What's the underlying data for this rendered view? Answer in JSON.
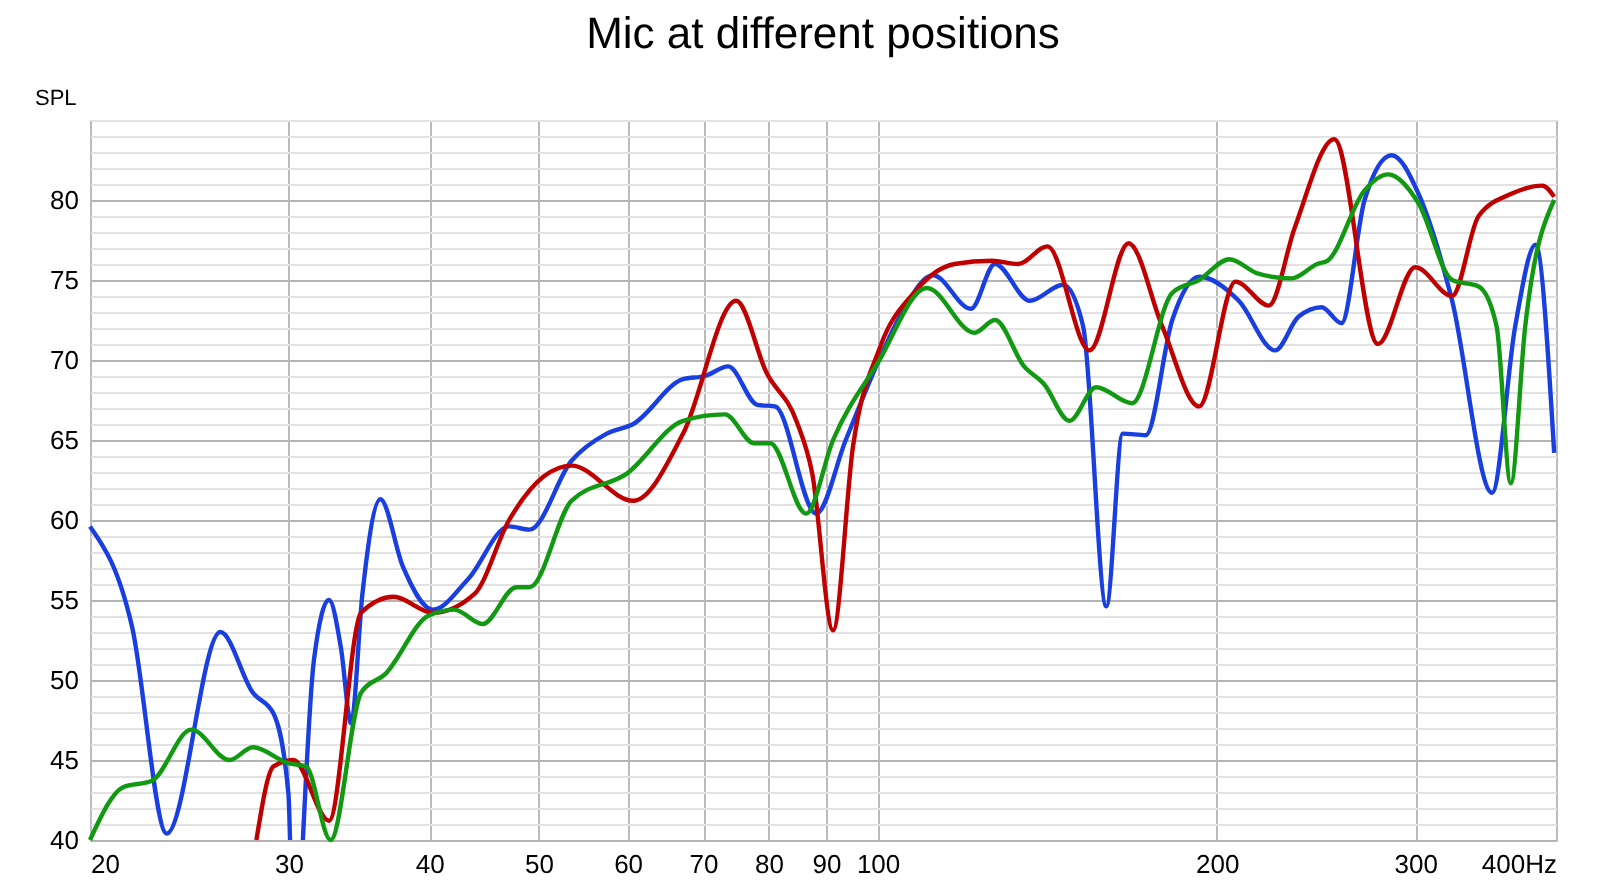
{
  "chart_data": {
    "type": "line",
    "title": "Mic at different positions",
    "ylabel": "SPL",
    "log": "x",
    "xlim": [
      20,
      400
    ],
    "ylim": [
      40,
      85
    ],
    "xticks": [
      20,
      30,
      40,
      50,
      60,
      70,
      80,
      90,
      100,
      200,
      300,
      {
        "value": 400,
        "label": "400Hz"
      }
    ],
    "yticks": [
      40,
      {
        "value": 41,
        "label": null
      },
      {
        "value": 42,
        "label": null
      },
      {
        "value": 43,
        "label": null
      },
      {
        "value": 44,
        "label": null
      },
      45,
      {
        "value": 46,
        "label": null
      },
      {
        "value": 47,
        "label": null
      },
      {
        "value": 48,
        "label": null
      },
      {
        "value": 49,
        "label": null
      },
      50,
      {
        "value": 51,
        "label": null
      },
      {
        "value": 52,
        "label": null
      },
      {
        "value": 53,
        "label": null
      },
      {
        "value": 54,
        "label": null
      },
      55,
      {
        "value": 56,
        "label": null
      },
      {
        "value": 57,
        "label": null
      },
      {
        "value": 58,
        "label": null
      },
      {
        "value": 59,
        "label": null
      },
      60,
      {
        "value": 61,
        "label": null
      },
      {
        "value": 62,
        "label": null
      },
      {
        "value": 63,
        "label": null
      },
      {
        "value": 64,
        "label": null
      },
      65,
      {
        "value": 66,
        "label": null
      },
      {
        "value": 67,
        "label": null
      },
      {
        "value": 68,
        "label": null
      },
      {
        "value": 69,
        "label": null
      },
      70,
      {
        "value": 71,
        "label": null
      },
      {
        "value": 72,
        "label": null
      },
      {
        "value": 73,
        "label": null
      },
      {
        "value": 74,
        "label": null
      },
      75,
      {
        "value": 76,
        "label": null
      },
      {
        "value": 77,
        "label": null
      },
      {
        "value": 78,
        "label": null
      },
      {
        "value": 79,
        "label": null
      },
      80,
      {
        "value": 81,
        "label": null
      },
      {
        "value": 82,
        "label": null
      },
      {
        "value": 83,
        "label": null
      },
      {
        "value": 84,
        "label": null
      },
      {
        "value": 85,
        "label": null
      }
    ],
    "grid": true,
    "legend": false,
    "marker": "none",
    "line_style": "solid",
    "series": [
      {
        "color": "#1a3fe0",
        "x": [
          20,
          21.8,
          23.4,
          26.1,
          27.9,
          29.1,
          30,
          30.1
        ],
        "values": [
          59.6,
          53.3,
          40.4,
          53,
          49.2,
          47.9,
          42.9,
          40
        ]
      },
      {
        "color": "#1a3fe0",
        "x": [
          30.9,
          31.6,
          32.6,
          33.4,
          34.1,
          34.9,
          36.2,
          37.9,
          40.3,
          43.3,
          47.1,
          49.1,
          53.5,
          57.5,
          60.7,
          67.2,
          70.3,
          73.7,
          78.2,
          81.1,
          88.2,
          93.7,
          100,
          105,
          112,
          121,
          127.1,
          136.5,
          146.1,
          152.2,
          159.6,
          165,
          173,
          182.6,
          192.9,
          209.2,
          225.3,
          236.3,
          247.8,
          258,
          270.5,
          285.9,
          302,
          323.5,
          351,
          368,
          383.6,
          398.5
        ],
        "values": [
          40,
          51.2,
          55,
          52,
          47.3,
          55.4,
          61.3,
          57.1,
          54.4,
          56.3,
          59.6,
          59.4,
          63.7,
          65.4,
          66,
          68.8,
          69,
          69.6,
          67.2,
          67.1,
          60.4,
          65,
          69.8,
          72.9,
          75.3,
          73.2,
          76,
          73.7,
          74.7,
          72.1,
          54.6,
          65.4,
          65.3,
          72.5,
          75.2,
          73.7,
          70.6,
          72.7,
          73.3,
          72.3,
          80,
          82.8,
          80.4,
          73.7,
          61.7,
          72.1,
          77.2,
          64.2
        ]
      },
      {
        "color": "#c00000",
        "x": [
          28.1,
          29.1,
          30.3,
          32.6,
          34.8,
          37.2,
          40.3,
          43.9,
          47.1,
          50.5,
          53.5,
          60.7,
          67.2,
          74.9,
          79.7,
          84.7,
          87.5,
          91.3,
          95.1,
          100.5,
          107.7,
          117,
          126.3,
          133.3,
          141.5,
          154.2,
          167,
          178.9,
          192.9,
          207.8,
          222.4,
          234.6,
          254.3,
          278,
          300,
          323.5,
          341.5,
          365.6,
          388.9,
          398.5
        ],
        "values": [
          40,
          44.6,
          45,
          41.2,
          54.2,
          55.2,
          54.2,
          55.4,
          60,
          62.7,
          63.4,
          61.2,
          65.4,
          73.7,
          69.2,
          66.2,
          62.9,
          53.1,
          64.6,
          70.8,
          74.2,
          76,
          76.2,
          76,
          77.1,
          70.6,
          77.3,
          72.1,
          67.1,
          74.9,
          73.4,
          78.3,
          83.8,
          71,
          75.8,
          74,
          79,
          80.4,
          80.9,
          80.2
        ]
      },
      {
        "color": "#119911",
        "x": [
          20,
          21.4,
          22.7,
          24.6,
          26.6,
          27.9,
          30,
          31.1,
          32.7,
          34.8,
          36.6,
          39.9,
          42.1,
          44.6,
          47.8,
          49.1,
          53.5,
          59.9,
          67.2,
          73.2,
          77.7,
          80.3,
          86.4,
          91.3,
          100,
          110.6,
          121.9,
          127.1,
          134.9,
          140.5,
          148,
          156.3,
          168.2,
          182.6,
          192.9,
          205.2,
          217.6,
          233,
          245.6,
          250.7,
          270.5,
          283.8,
          302,
          323.5,
          341.5,
          354.3,
          364.7,
          375.6,
          398.5
        ],
        "values": [
          40,
          43.3,
          43.7,
          46.9,
          45,
          45.8,
          44.8,
          44.6,
          40,
          49.2,
          50.4,
          54,
          54.4,
          53.5,
          55.8,
          55.8,
          61.2,
          62.9,
          66.2,
          66.6,
          64.8,
          64.8,
          60.4,
          65,
          69.8,
          74.5,
          71.7,
          72.5,
          69.6,
          68.5,
          66.2,
          68.3,
          67.3,
          74.2,
          75,
          76.3,
          75.4,
          75.1,
          76,
          76.2,
          80.6,
          81.6,
          79.8,
          75,
          74.6,
          72.1,
          62.3,
          72.1,
          80
        ]
      }
    ]
  }
}
